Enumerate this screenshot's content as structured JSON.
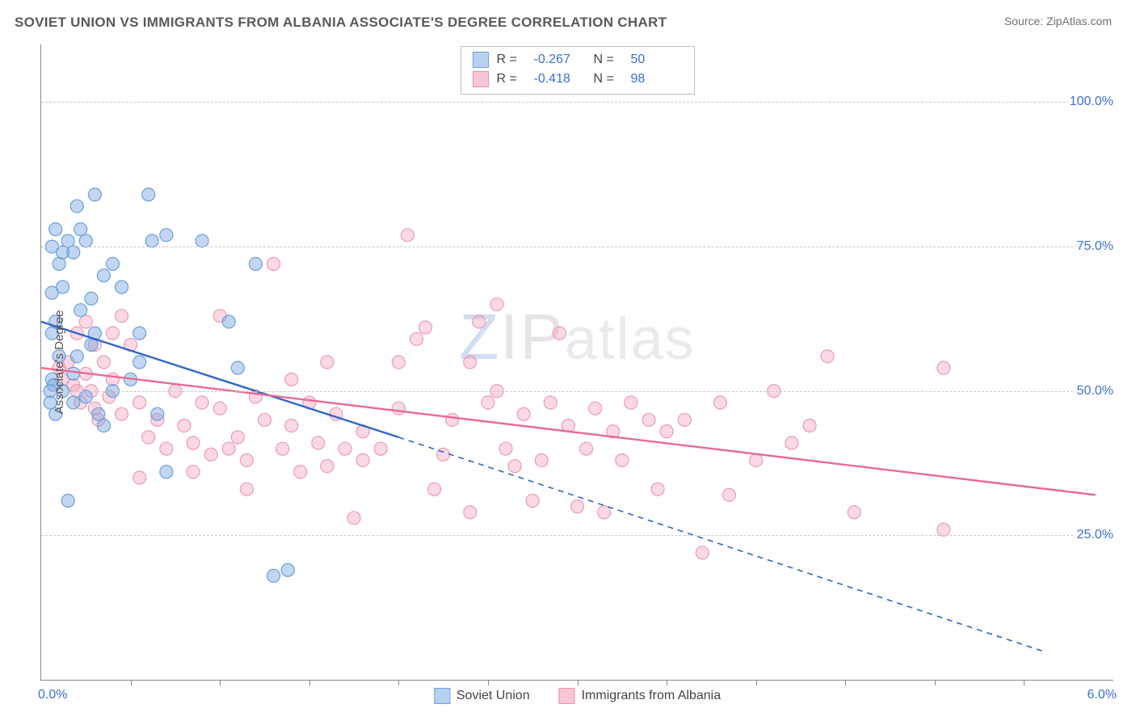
{
  "header": {
    "title": "SOVIET UNION VS IMMIGRANTS FROM ALBANIA ASSOCIATE'S DEGREE CORRELATION CHART",
    "source_label": "Source: ",
    "source_value": "ZipAtlas.com"
  },
  "watermark": {
    "z": "Z",
    "ip": "IP",
    "rest": "atlas"
  },
  "chart": {
    "type": "scatter",
    "background_color": "#ffffff",
    "grid_color": "#c9c9c9",
    "axis_color": "#888888",
    "ylabel": "Associate's Degree",
    "xlim": [
      0,
      6
    ],
    "ylim": [
      0,
      110
    ],
    "xticks": [
      0.5,
      1.0,
      1.5,
      2.0,
      2.5,
      3.0,
      3.5,
      4.0,
      4.5,
      5.0,
      5.5
    ],
    "yticks": [
      25,
      50,
      75,
      100
    ],
    "ytick_labels": [
      "25.0%",
      "50.0%",
      "75.0%",
      "100.0%"
    ],
    "x_start_label": "0.0%",
    "x_end_label": "6.0%",
    "marker_radius": 8,
    "marker_stroke_width": 1.2,
    "label_fontsize": 15,
    "tick_fontsize": 16,
    "tick_color": "#3b6fd6"
  },
  "series": [
    {
      "name": "Soviet Union",
      "color_fill": "rgba(120,165,225,0.45)",
      "color_stroke": "#6a9fe0",
      "swatch_fill": "#b8d1f0",
      "swatch_border": "#6a9fe0",
      "R": "-0.267",
      "N": "50",
      "trend": {
        "x1": 0.0,
        "y1": 62,
        "x2": 2.0,
        "y2": 42,
        "solid_until_x": 2.0,
        "dash_to_x": 5.6,
        "dash_to_y": 5,
        "stroke": "#2f66c9",
        "width": 2.4
      },
      "points": [
        [
          0.05,
          48
        ],
        [
          0.05,
          50
        ],
        [
          0.06,
          52
        ],
        [
          0.07,
          51
        ],
        [
          0.06,
          60
        ],
        [
          0.08,
          62
        ],
        [
          0.06,
          67
        ],
        [
          0.1,
          72
        ],
        [
          0.12,
          74
        ],
        [
          0.15,
          76
        ],
        [
          0.18,
          74
        ],
        [
          0.22,
          78
        ],
        [
          0.25,
          76
        ],
        [
          0.06,
          75
        ],
        [
          0.08,
          78
        ],
        [
          0.2,
          82
        ],
        [
          0.3,
          84
        ],
        [
          0.35,
          70
        ],
        [
          0.4,
          72
        ],
        [
          0.45,
          68
        ],
        [
          0.15,
          31
        ],
        [
          0.12,
          50
        ],
        [
          0.18,
          53
        ],
        [
          0.2,
          56
        ],
        [
          0.25,
          49
        ],
        [
          0.28,
          58
        ],
        [
          0.3,
          60
        ],
        [
          0.32,
          46
        ],
        [
          0.35,
          44
        ],
        [
          0.4,
          50
        ],
        [
          0.6,
          84
        ],
        [
          0.62,
          76
        ],
        [
          0.7,
          77
        ],
        [
          0.9,
          76
        ],
        [
          0.55,
          60
        ],
        [
          0.5,
          52
        ],
        [
          0.55,
          55
        ],
        [
          0.65,
          46
        ],
        [
          0.7,
          36
        ],
        [
          1.05,
          62
        ],
        [
          1.1,
          54
        ],
        [
          1.2,
          72
        ],
        [
          1.3,
          18
        ],
        [
          1.38,
          19
        ],
        [
          0.22,
          64
        ],
        [
          0.12,
          68
        ],
        [
          0.28,
          66
        ],
        [
          0.08,
          46
        ],
        [
          0.1,
          56
        ],
        [
          0.18,
          48
        ]
      ]
    },
    {
      "name": "Immigrants from Albania",
      "color_fill": "rgba(245,160,185,0.40)",
      "color_stroke": "#ec9ab2",
      "swatch_fill": "#f6c6d4",
      "swatch_border": "#ec8fa9",
      "R": "-0.418",
      "N": "98",
      "trend": {
        "x1": 0.0,
        "y1": 54,
        "x2": 5.9,
        "y2": 32,
        "solid_until_x": 5.9,
        "stroke": "#e86a92",
        "width": 2.4
      },
      "points": [
        [
          0.1,
          54
        ],
        [
          0.12,
          52
        ],
        [
          0.15,
          55
        ],
        [
          0.18,
          51
        ],
        [
          0.2,
          50
        ],
        [
          0.22,
          48
        ],
        [
          0.25,
          53
        ],
        [
          0.28,
          50
        ],
        [
          0.3,
          47
        ],
        [
          0.32,
          45
        ],
        [
          0.35,
          55
        ],
        [
          0.38,
          49
        ],
        [
          0.4,
          52
        ],
        [
          0.45,
          46
        ],
        [
          0.2,
          60
        ],
        [
          0.25,
          62
        ],
        [
          0.5,
          58
        ],
        [
          0.55,
          48
        ],
        [
          0.6,
          42
        ],
        [
          0.65,
          45
        ],
        [
          0.7,
          40
        ],
        [
          0.75,
          50
        ],
        [
          0.8,
          44
        ],
        [
          0.85,
          41
        ],
        [
          0.9,
          48
        ],
        [
          0.95,
          39
        ],
        [
          1.0,
          47
        ],
        [
          1.0,
          63
        ],
        [
          1.05,
          40
        ],
        [
          1.1,
          42
        ],
        [
          1.15,
          38
        ],
        [
          1.2,
          49
        ],
        [
          1.25,
          45
        ],
        [
          1.3,
          72
        ],
        [
          1.35,
          40
        ],
        [
          1.4,
          44
        ],
        [
          1.45,
          36
        ],
        [
          1.5,
          48
        ],
        [
          1.55,
          41
        ],
        [
          1.6,
          37
        ],
        [
          1.65,
          46
        ],
        [
          1.7,
          40
        ],
        [
          1.75,
          28
        ],
        [
          1.8,
          43
        ],
        [
          1.8,
          38
        ],
        [
          1.9,
          40
        ],
        [
          2.0,
          47
        ],
        [
          2.05,
          77
        ],
        [
          2.1,
          59
        ],
        [
          2.15,
          61
        ],
        [
          2.2,
          33
        ],
        [
          2.25,
          39
        ],
        [
          2.3,
          45
        ],
        [
          2.4,
          29
        ],
        [
          2.45,
          62
        ],
        [
          2.5,
          48
        ],
        [
          2.55,
          50
        ],
        [
          2.55,
          65
        ],
        [
          2.6,
          40
        ],
        [
          2.65,
          37
        ],
        [
          2.7,
          46
        ],
        [
          2.75,
          31
        ],
        [
          2.8,
          38
        ],
        [
          2.85,
          48
        ],
        [
          2.9,
          60
        ],
        [
          2.95,
          44
        ],
        [
          3.0,
          30
        ],
        [
          3.05,
          40
        ],
        [
          3.1,
          47
        ],
        [
          3.15,
          29
        ],
        [
          3.2,
          43
        ],
        [
          3.25,
          38
        ],
        [
          3.3,
          48
        ],
        [
          3.4,
          45
        ],
        [
          3.45,
          33
        ],
        [
          3.5,
          43
        ],
        [
          3.6,
          45
        ],
        [
          3.7,
          22
        ],
        [
          3.8,
          48
        ],
        [
          3.85,
          32
        ],
        [
          4.0,
          38
        ],
        [
          4.1,
          50
        ],
        [
          4.2,
          41
        ],
        [
          4.3,
          44
        ],
        [
          4.4,
          56
        ],
        [
          4.55,
          29
        ],
        [
          5.05,
          54
        ],
        [
          5.05,
          26
        ],
        [
          0.55,
          35
        ],
        [
          0.85,
          36
        ],
        [
          1.15,
          33
        ],
        [
          0.3,
          58
        ],
        [
          0.4,
          60
        ],
        [
          0.45,
          63
        ],
        [
          1.4,
          52
        ],
        [
          1.6,
          55
        ],
        [
          2.0,
          55
        ],
        [
          2.4,
          55
        ]
      ]
    }
  ],
  "legend_bottom": [
    {
      "label": "Soviet Union"
    },
    {
      "label": "Immigrants from Albania"
    }
  ],
  "stats_box": {
    "r_label": "R =",
    "n_label": "N ="
  }
}
